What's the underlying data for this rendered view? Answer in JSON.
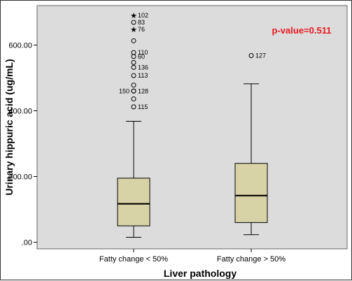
{
  "colors": {
    "plot_bg": "#dcdcdc",
    "box_fill": "#d8d3a6",
    "median": "#000000",
    "annotation": "#e8191f"
  },
  "chart_data": {
    "type": "boxplot",
    "title": "",
    "xlabel": "Liver pathology",
    "ylabel": "Urinary hippuric acid (ug/mL)",
    "ylim": [
      -20,
      720
    ],
    "yticks": [
      0,
      200,
      400,
      600
    ],
    "ytick_labels": [
      ".00",
      "200.00",
      "400.00",
      "600.00"
    ],
    "grid": false,
    "annotation": "p-value=0.511",
    "groups": [
      {
        "category": "Fatty change < 50%",
        "whisker_low": 15,
        "q1": 50,
        "median": 117,
        "q3": 195,
        "whisker_high": 368,
        "outliers": [
          {
            "label": "102",
            "value": 690,
            "marker": "star"
          },
          {
            "label": "83",
            "value": 669,
            "marker": "circle"
          },
          {
            "label": "76",
            "value": 648,
            "marker": "star"
          },
          {
            "label": "",
            "value": 613,
            "marker": "circle"
          },
          {
            "label": "110",
            "value": 577,
            "marker": "circle"
          },
          {
            "label": "60",
            "value": 565,
            "marker": "circle"
          },
          {
            "label": "",
            "value": 547,
            "marker": "circle"
          },
          {
            "label": "136",
            "value": 532,
            "marker": "circle"
          },
          {
            "label": "113",
            "value": 507,
            "marker": "circle"
          },
          {
            "label": "",
            "value": 478,
            "marker": "circle"
          },
          {
            "label": "150",
            "value": 460,
            "marker": "circle"
          },
          {
            "label": "128",
            "value": 460,
            "marker": "circle"
          },
          {
            "label": "",
            "value": 436,
            "marker": "circle"
          },
          {
            "label": "115",
            "value": 412,
            "marker": "circle"
          }
        ]
      },
      {
        "category": "Fatty change > 50%",
        "whisker_low": 23,
        "q1": 60,
        "median": 142,
        "q3": 240,
        "whisker_high": 482,
        "outliers": [
          {
            "label": "127",
            "value": 568,
            "marker": "circle"
          }
        ]
      }
    ]
  }
}
